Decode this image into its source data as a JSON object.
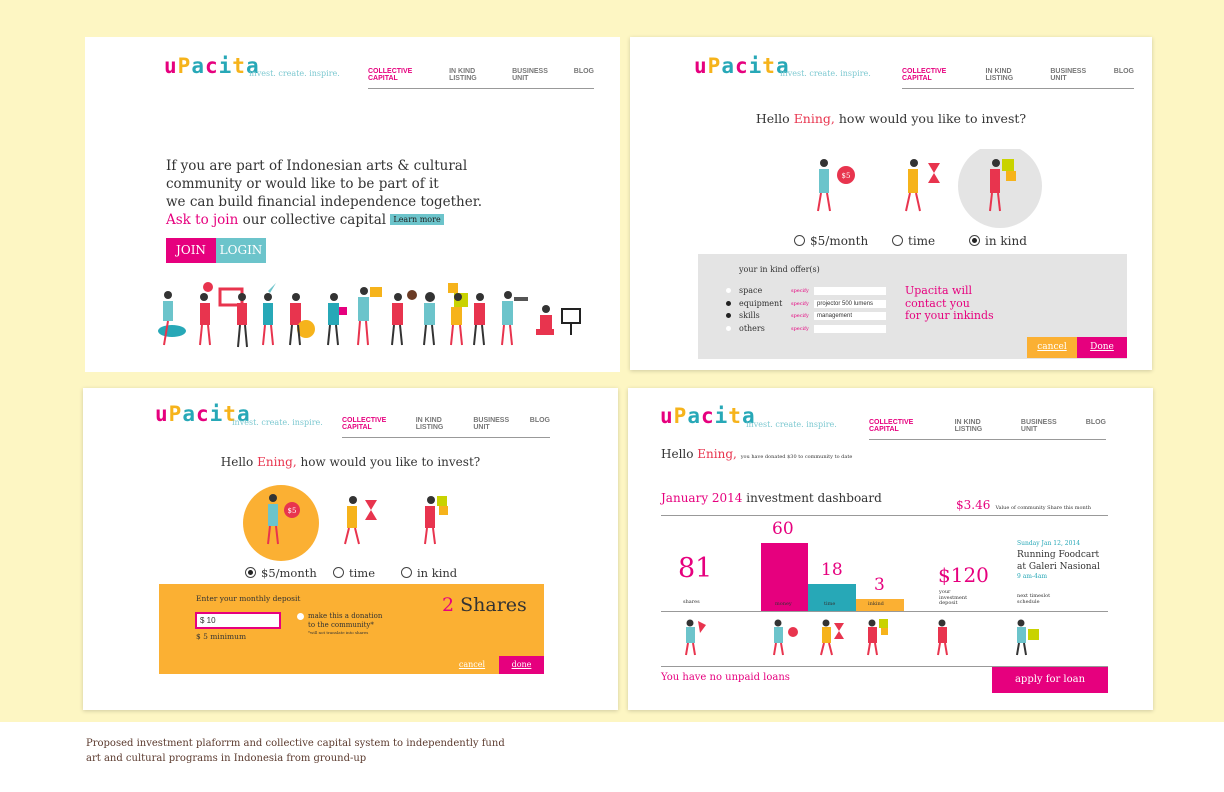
{
  "brand": {
    "logo_letters": [
      "u",
      "P",
      "a",
      "c",
      "i",
      "t",
      "a"
    ],
    "tagline": "invest. create. inspire."
  },
  "nav": [
    "COLLECTIVE CAPITAL",
    "IN KIND LISTING",
    "BUSINESS UNIT",
    "BLOG"
  ],
  "colors": {
    "pink": "#e6007e",
    "teal": "#6cc4cb",
    "orange": "#fbb033",
    "red": "#e8344e",
    "gray": "#e4e4e4"
  },
  "landing": {
    "line1": "If you are part of Indonesian arts & cultural",
    "line2": "community or would like to be part of it",
    "line3": "we can build financial independence together.",
    "ask_link": "Ask to join",
    "ask_rest": "our collective capital",
    "learn_more": "Learn more",
    "join": "JOIN",
    "login": "LOGIN"
  },
  "greeting": {
    "hello": "Hello",
    "name": "Ening,",
    "question": "how would you like to invest?"
  },
  "options": {
    "money": "$5/month",
    "time": "time",
    "kind": "in kind",
    "coin": "$5"
  },
  "inkind_form": {
    "title": "your in kind offer(s)",
    "items": [
      {
        "label": "space",
        "value": "",
        "checked": false
      },
      {
        "label": "equipment",
        "value": "projector 500 lumens",
        "checked": true
      },
      {
        "label": "skills",
        "value": "management",
        "checked": true
      },
      {
        "label": "others",
        "value": "",
        "checked": false
      }
    ],
    "specify": "specify",
    "note_line1": "Upacita will",
    "note_line2": "contact you",
    "note_line3": "for your inkinds",
    "cancel": "cancel",
    "done": "Done"
  },
  "deposit_form": {
    "title": "Enter your monthly deposit",
    "value": "$ 10",
    "minimum": "$ 5 minimum",
    "donation_line1": "make this a donation",
    "donation_line2": "to the community*",
    "footnote": "*will not translate into shares",
    "shares_count": "2",
    "shares_label": "Shares",
    "cancel": "cancel",
    "done": "done"
  },
  "dashboard": {
    "donated_note": "you have donated $30 to community to date",
    "month": "January 2014",
    "title": "investment dashboard",
    "share_value": "$3.46",
    "share_value_note": "Value of community Share this month",
    "shares": "81",
    "shares_label": "shares",
    "bars": [
      {
        "label": "money",
        "value": "60"
      },
      {
        "label": "time",
        "value": "18"
      },
      {
        "label": "inkind",
        "value": "3"
      }
    ],
    "deposit": "$120",
    "deposit_label_1": "your",
    "deposit_label_2": "investment",
    "deposit_label_3": "deposit",
    "event_date": "Sunday Jan 12, 2014",
    "event_line1": "Running Foodcart",
    "event_line2": "at Galeri Nasional",
    "event_time": "9 am-4am",
    "next_label_1": "next timeslot",
    "next_label_2": "schedule",
    "loans_text": "You have no unpaid loans",
    "apply": "apply for loan"
  },
  "caption_line1": "Proposed investment plaforrm and collective capital system to independently fund",
  "caption_line2": "art and cultural programs in Indonesia from ground-up"
}
